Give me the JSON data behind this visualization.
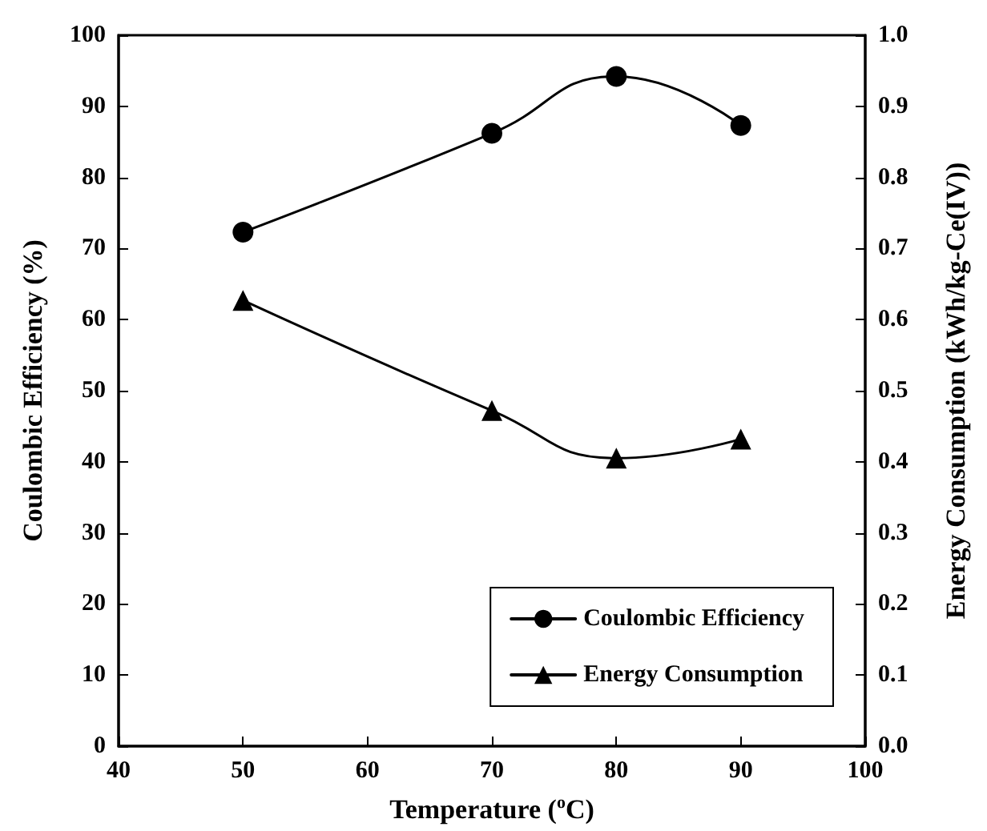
{
  "chart_data": {
    "type": "line",
    "xlabel": "Temperature ($^{o}$C)",
    "ylabel": "Coulombic Efficiency (%)",
    "y2label": "Energy Consumption (kWh/kg-Ce(IV))",
    "x": [
      50,
      70,
      80,
      90
    ],
    "series": [
      {
        "name": "Coulombic Efficiency",
        "color": "#000000",
        "marker": "circle",
        "values": [
          72.3,
          86.2,
          94.2,
          87.3
        ]
      },
      {
        "name": "Energy Consumption",
        "color": "#000000",
        "marker": "triangle",
        "axis": "y2",
        "values": [
          0.627,
          0.472,
          0.405,
          0.432
        ]
      }
    ],
    "xlim": [
      40,
      100
    ],
    "xticks": [
      40,
      50,
      60,
      70,
      80,
      90,
      100
    ],
    "ylim": [
      0,
      100
    ],
    "yticks": [
      0,
      10,
      20,
      30,
      40,
      50,
      60,
      70,
      80,
      90,
      100
    ],
    "y2lim": [
      0,
      1
    ],
    "y2ticks": [
      {
        "value": 0,
        "label": "0.0"
      },
      {
        "value": 0.1,
        "label": "0.1"
      },
      {
        "value": 0.2,
        "label": "0.2"
      },
      {
        "value": 0.3,
        "label": "0.3"
      },
      {
        "value": 0.4,
        "label": "0.4"
      },
      {
        "value": 0.5,
        "label": "0.5"
      },
      {
        "value": 0.6,
        "label": "0.6"
      },
      {
        "value": 0.7,
        "label": "0.7"
      },
      {
        "value": 0.8,
        "label": "0.8"
      },
      {
        "value": 0.9,
        "label": "0.9"
      },
      {
        "value": 1,
        "label": "1.0"
      }
    ],
    "grid": false,
    "legend": "bottom right",
    "line_style": "solid"
  }
}
